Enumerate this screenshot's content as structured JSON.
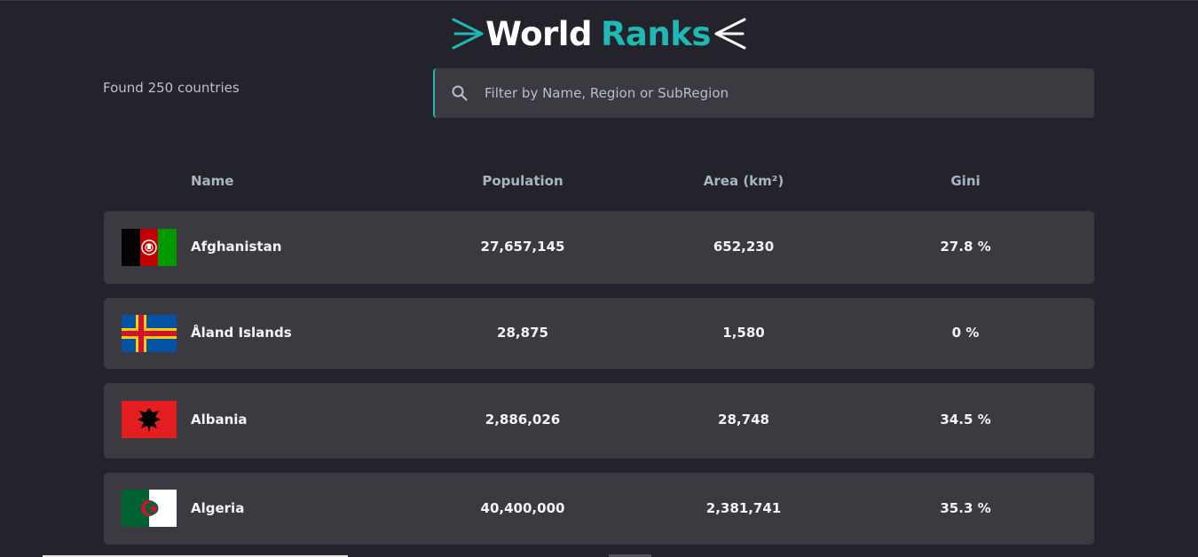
{
  "header": {
    "logo_word_1": "World",
    "logo_word_2": "Ranks"
  },
  "toolbar": {
    "found_text": "Found 250 countries",
    "search": {
      "placeholder": "Filter by Name, Region or SubRegion",
      "value": ""
    }
  },
  "table": {
    "columns": [
      "Name",
      "Population",
      "Area (km²)",
      "Gini"
    ],
    "rows": [
      {
        "name": "Afghanistan",
        "population": "27,657,145",
        "area": "652,230",
        "gini": "27.8 %",
        "flag": "afghanistan-flag"
      },
      {
        "name": "Åland Islands",
        "population": "28,875",
        "area": "1,580",
        "gini": "0 %",
        "flag": "aland-islands-flag"
      },
      {
        "name": "Albania",
        "population": "2,886,026",
        "area": "28,748",
        "gini": "34.5 %",
        "flag": "albania-flag"
      },
      {
        "name": "Algeria",
        "population": "40,400,000",
        "area": "2,381,741",
        "gini": "35.3 %",
        "flag": "algeria-flag"
      }
    ]
  },
  "colors": {
    "background": "#24222a",
    "surface": "#3c3a41",
    "accent": "#1fb8b4",
    "text": "#f4f4f6",
    "muted": "#a8b6c4"
  }
}
